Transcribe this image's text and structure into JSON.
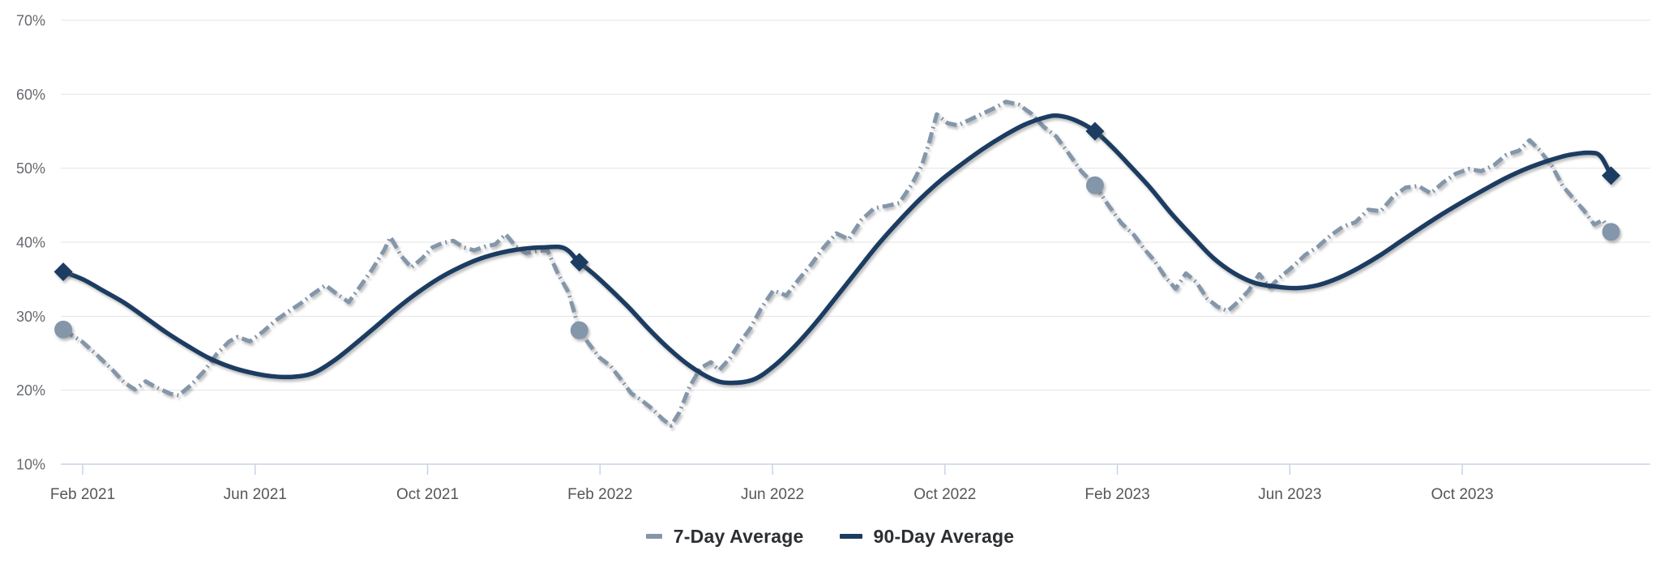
{
  "chart_data": {
    "type": "line",
    "title": "",
    "xlabel": "",
    "ylabel": "",
    "unit": "%",
    "x_unit": "months_since_Feb_2021",
    "date_range": "mid-Jan 2021 to mid-Jan 2024",
    "grid": "horizontal-only",
    "legend_position": "bottom-center",
    "y_axis": {
      "min": 10,
      "max": 70,
      "tick_values": [
        70,
        60,
        50,
        40,
        30,
        20,
        10
      ],
      "tick_labels": [
        "70%",
        "60%",
        "50%",
        "40%",
        "30%",
        "20%",
        "10%"
      ]
    },
    "x_axis": {
      "tick_months": [
        0,
        4,
        8,
        12,
        16,
        20,
        24,
        28,
        32
      ],
      "tick_labels": [
        "Feb 2021",
        "Jun 2021",
        "Oct 2021",
        "Feb 2022",
        "Jun 2022",
        "Oct 2022",
        "Feb 2023",
        "Jun 2023",
        "Oct 2023"
      ]
    },
    "series": [
      {
        "name": "7-Day Average",
        "style": "dashed",
        "color": "#8496aa",
        "marker_shape": "circle",
        "markers": [
          [
            -0.45,
            28.2
          ],
          [
            11.52,
            28.1
          ],
          [
            23.48,
            47.7
          ],
          [
            35.45,
            41.4
          ]
        ],
        "points": [
          [
            -0.45,
            28.2
          ],
          [
            0,
            26.5
          ],
          [
            0.34,
            24.7
          ],
          [
            0.68,
            22.8
          ],
          [
            0.97,
            21.0
          ],
          [
            1.21,
            20.1
          ],
          [
            1.46,
            21.2
          ],
          [
            1.7,
            20.4
          ],
          [
            2.04,
            19.5
          ],
          [
            2.23,
            19.3
          ],
          [
            2.53,
            20.8
          ],
          [
            2.82,
            22.6
          ],
          [
            3.11,
            24.9
          ],
          [
            3.4,
            26.6
          ],
          [
            3.59,
            27.2
          ],
          [
            3.88,
            26.6
          ],
          [
            4.18,
            27.9
          ],
          [
            4.47,
            29.4
          ],
          [
            4.76,
            30.6
          ],
          [
            5.05,
            31.7
          ],
          [
            5.34,
            33.0
          ],
          [
            5.63,
            34.2
          ],
          [
            5.92,
            32.9
          ],
          [
            6.17,
            31.9
          ],
          [
            6.41,
            33.8
          ],
          [
            6.7,
            36.2
          ],
          [
            6.99,
            38.9
          ],
          [
            7.14,
            40.7
          ],
          [
            7.38,
            38.2
          ],
          [
            7.62,
            36.6
          ],
          [
            7.87,
            37.8
          ],
          [
            8.11,
            39.3
          ],
          [
            8.35,
            39.9
          ],
          [
            8.6,
            40.2
          ],
          [
            8.84,
            39.3
          ],
          [
            9.08,
            38.9
          ],
          [
            9.32,
            39.4
          ],
          [
            9.57,
            39.7
          ],
          [
            9.81,
            41.1
          ],
          [
            10.05,
            39.4
          ],
          [
            10.29,
            38.5
          ],
          [
            10.54,
            38.8
          ],
          [
            10.78,
            38.9
          ],
          [
            11.02,
            35.8
          ],
          [
            11.27,
            33.2
          ],
          [
            11.52,
            28.1
          ],
          [
            11.75,
            26.2
          ],
          [
            11.99,
            24.4
          ],
          [
            12.24,
            23.3
          ],
          [
            12.48,
            21.5
          ],
          [
            12.72,
            19.6
          ],
          [
            12.97,
            18.6
          ],
          [
            13.21,
            17.5
          ],
          [
            13.45,
            16.1
          ],
          [
            13.65,
            15.2
          ],
          [
            13.84,
            17.0
          ],
          [
            14.08,
            20.5
          ],
          [
            14.33,
            23.0
          ],
          [
            14.57,
            23.8
          ],
          [
            14.76,
            22.7
          ],
          [
            15.01,
            24.3
          ],
          [
            15.25,
            26.5
          ],
          [
            15.49,
            28.4
          ],
          [
            15.73,
            31.0
          ],
          [
            16.02,
            33.5
          ],
          [
            16.32,
            32.8
          ],
          [
            16.61,
            35.0
          ],
          [
            16.9,
            37.0
          ],
          [
            17.19,
            39.3
          ],
          [
            17.48,
            41.2
          ],
          [
            17.77,
            40.4
          ],
          [
            18.06,
            43.0
          ],
          [
            18.36,
            44.6
          ],
          [
            18.65,
            44.9
          ],
          [
            18.94,
            45.3
          ],
          [
            19.23,
            47.8
          ],
          [
            19.47,
            50.5
          ],
          [
            19.62,
            53.2
          ],
          [
            19.81,
            57.3
          ],
          [
            20.06,
            56.1
          ],
          [
            20.3,
            55.8
          ],
          [
            20.59,
            56.6
          ],
          [
            20.88,
            57.4
          ],
          [
            21.17,
            58.2
          ],
          [
            21.42,
            59.0
          ],
          [
            21.71,
            58.6
          ],
          [
            22.0,
            57.4
          ],
          [
            22.29,
            55.6
          ],
          [
            22.58,
            54.3
          ],
          [
            22.87,
            52.0
          ],
          [
            23.16,
            49.6
          ],
          [
            23.48,
            47.7
          ],
          [
            23.79,
            45.0
          ],
          [
            24.09,
            42.6
          ],
          [
            24.38,
            41.0
          ],
          [
            24.62,
            39.1
          ],
          [
            24.86,
            37.5
          ],
          [
            25.11,
            35.3
          ],
          [
            25.35,
            33.7
          ],
          [
            25.59,
            35.8
          ],
          [
            25.83,
            34.6
          ],
          [
            26.08,
            32.4
          ],
          [
            26.32,
            31.3
          ],
          [
            26.56,
            30.7
          ],
          [
            26.81,
            32.0
          ],
          [
            27.05,
            33.5
          ],
          [
            27.29,
            35.7
          ],
          [
            27.53,
            33.9
          ],
          [
            27.78,
            35.3
          ],
          [
            28.07,
            36.7
          ],
          [
            28.36,
            38.3
          ],
          [
            28.65,
            39.4
          ],
          [
            28.94,
            40.9
          ],
          [
            29.23,
            42.1
          ],
          [
            29.52,
            42.7
          ],
          [
            29.82,
            44.4
          ],
          [
            30.11,
            44.2
          ],
          [
            30.4,
            46.2
          ],
          [
            30.69,
            47.4
          ],
          [
            30.98,
            47.6
          ],
          [
            31.27,
            46.6
          ],
          [
            31.56,
            48.1
          ],
          [
            31.86,
            49.3
          ],
          [
            32.15,
            49.9
          ],
          [
            32.44,
            49.6
          ],
          [
            32.73,
            50.4
          ],
          [
            33.02,
            51.8
          ],
          [
            33.32,
            52.4
          ],
          [
            33.56,
            53.8
          ],
          [
            33.8,
            52.4
          ],
          [
            34.09,
            50.2
          ],
          [
            34.33,
            47.6
          ],
          [
            34.58,
            45.9
          ],
          [
            34.82,
            44.3
          ],
          [
            35.06,
            42.4
          ],
          [
            35.26,
            43.0
          ],
          [
            35.45,
            41.4
          ]
        ]
      },
      {
        "name": "90-Day Average",
        "style": "solid",
        "color": "#1c3c61",
        "marker_shape": "diamond",
        "markers": [
          [
            -0.45,
            36.0
          ],
          [
            11.52,
            37.3
          ],
          [
            23.48,
            55.0
          ],
          [
            35.45,
            49.0
          ]
        ],
        "points": [
          [
            -0.45,
            36.0
          ],
          [
            0,
            35.0
          ],
          [
            0.49,
            33.4
          ],
          [
            0.97,
            31.8
          ],
          [
            1.46,
            29.8
          ],
          [
            1.94,
            27.8
          ],
          [
            2.43,
            26.0
          ],
          [
            2.91,
            24.4
          ],
          [
            3.4,
            23.2
          ],
          [
            3.88,
            22.4
          ],
          [
            4.37,
            21.9
          ],
          [
            4.86,
            21.8
          ],
          [
            5.34,
            22.3
          ],
          [
            5.83,
            24.0
          ],
          [
            6.31,
            26.2
          ],
          [
            6.8,
            28.6
          ],
          [
            7.28,
            31.0
          ],
          [
            7.77,
            33.2
          ],
          [
            8.26,
            35.1
          ],
          [
            8.74,
            36.6
          ],
          [
            9.23,
            37.8
          ],
          [
            9.71,
            38.6
          ],
          [
            10.2,
            39.1
          ],
          [
            10.68,
            39.3
          ],
          [
            11.17,
            39.2
          ],
          [
            11.52,
            37.3
          ],
          [
            11.95,
            35.2
          ],
          [
            12.63,
            31.4
          ],
          [
            13.11,
            28.4
          ],
          [
            13.6,
            25.6
          ],
          [
            14.08,
            23.3
          ],
          [
            14.57,
            21.6
          ],
          [
            14.96,
            21.0
          ],
          [
            15.54,
            21.4
          ],
          [
            16.02,
            23.2
          ],
          [
            16.51,
            25.9
          ],
          [
            17.0,
            29.1
          ],
          [
            17.48,
            32.6
          ],
          [
            17.97,
            36.2
          ],
          [
            18.45,
            39.7
          ],
          [
            18.94,
            42.9
          ],
          [
            19.42,
            45.8
          ],
          [
            19.91,
            48.4
          ],
          [
            20.4,
            50.6
          ],
          [
            20.88,
            52.6
          ],
          [
            21.37,
            54.4
          ],
          [
            21.85,
            55.9
          ],
          [
            22.34,
            56.9
          ],
          [
            22.63,
            57.1
          ],
          [
            23.02,
            56.5
          ],
          [
            23.48,
            55.0
          ],
          [
            23.89,
            52.8
          ],
          [
            24.28,
            50.4
          ],
          [
            24.77,
            47.3
          ],
          [
            25.25,
            43.9
          ],
          [
            25.74,
            40.8
          ],
          [
            26.22,
            37.9
          ],
          [
            26.71,
            35.8
          ],
          [
            27.19,
            34.5
          ],
          [
            27.68,
            34.0
          ],
          [
            28.16,
            33.8
          ],
          [
            28.65,
            34.2
          ],
          [
            29.14,
            35.2
          ],
          [
            29.62,
            36.6
          ],
          [
            30.11,
            38.3
          ],
          [
            30.59,
            40.2
          ],
          [
            31.08,
            42.1
          ],
          [
            31.56,
            43.9
          ],
          [
            32.05,
            45.6
          ],
          [
            32.54,
            47.2
          ],
          [
            33.02,
            48.7
          ],
          [
            33.51,
            50.0
          ],
          [
            33.99,
            51.0
          ],
          [
            34.48,
            51.8
          ],
          [
            34.96,
            52.1
          ],
          [
            35.21,
            51.6
          ],
          [
            35.45,
            49.0
          ]
        ]
      }
    ]
  },
  "legend": {
    "item1": "7-Day Average",
    "item2": "90-Day Average"
  },
  "colors": {
    "background": "#ffffff",
    "series_7day": "#8496aa",
    "series_90day": "#1c3c61",
    "gridline": "#e4e4e4",
    "baseline": "#c9d3e8",
    "tick": "#c9d3e8",
    "y_label": "#66696e",
    "x_label": "#54575b",
    "legend_text": "#2b2e32"
  }
}
